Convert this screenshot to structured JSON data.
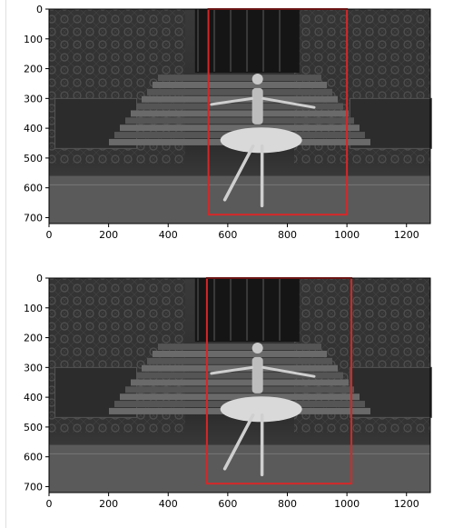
{
  "figures": [
    {
      "id": "frame-1",
      "image_extent": {
        "x": [
          0,
          1280
        ],
        "y": [
          0,
          720
        ]
      },
      "x_ticks": [
        "0",
        "200",
        "400",
        "600",
        "800",
        "1000",
        "1200"
      ],
      "y_ticks": [
        "0",
        "100",
        "200",
        "300",
        "400",
        "500",
        "600",
        "700"
      ],
      "x_tick_values": [
        0,
        200,
        400,
        600,
        800,
        1000,
        1200
      ],
      "y_tick_values": [
        0,
        100,
        200,
        300,
        400,
        500,
        600,
        700
      ],
      "bbox": {
        "x_min": 535,
        "x_max": 1000,
        "y_min": 0,
        "y_max": 690,
        "color": "#d62728"
      },
      "image_description": "grayscale ballet stage with dancer"
    },
    {
      "id": "frame-2",
      "image_extent": {
        "x": [
          0,
          1280
        ],
        "y": [
          0,
          720
        ]
      },
      "x_ticks": [
        "0",
        "200",
        "400",
        "600",
        "800",
        "1000",
        "1200"
      ],
      "y_ticks": [
        "0",
        "100",
        "200",
        "300",
        "400",
        "500",
        "600",
        "700"
      ],
      "x_tick_values": [
        0,
        200,
        400,
        600,
        800,
        1000,
        1200
      ],
      "y_tick_values": [
        0,
        100,
        200,
        300,
        400,
        500,
        600,
        700
      ],
      "bbox": {
        "x_min": 530,
        "x_max": 1015,
        "y_min": 0,
        "y_max": 690,
        "color": "#d62728"
      },
      "image_description": "grayscale ballet stage with dancer"
    }
  ]
}
